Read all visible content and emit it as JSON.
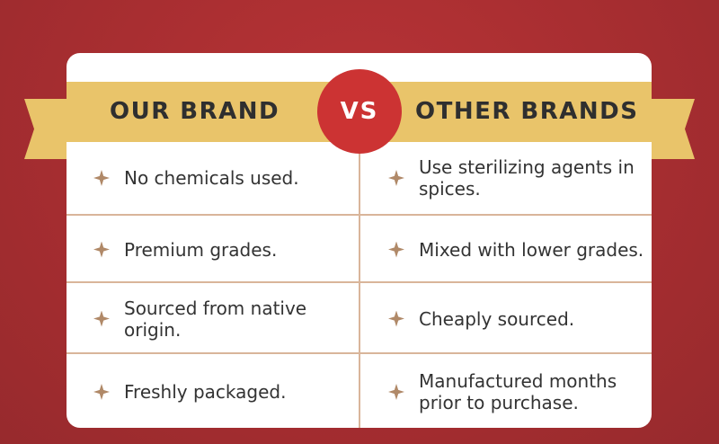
{
  "header": {
    "left": "OUR BRAND",
    "vs": "VS",
    "right": "OTHER BRANDS"
  },
  "rows": [
    {
      "ours": "No chemicals used.",
      "others": "Use sterilizing agents in spices."
    },
    {
      "ours": "Premium grades.",
      "others": "Mixed with lower grades."
    },
    {
      "ours": "Sourced from native origin.",
      "others": "Cheaply sourced."
    },
    {
      "ours": "Freshly packaged.",
      "others": "Manufactured months prior to purchase."
    }
  ],
  "colors": {
    "background": "#a52d30",
    "banner": "#e9c46a",
    "vs_circle": "#cc3333",
    "star": "#b08968",
    "divider": "#d9b59a"
  },
  "icons": {
    "bullet": "four-point-star-icon"
  }
}
